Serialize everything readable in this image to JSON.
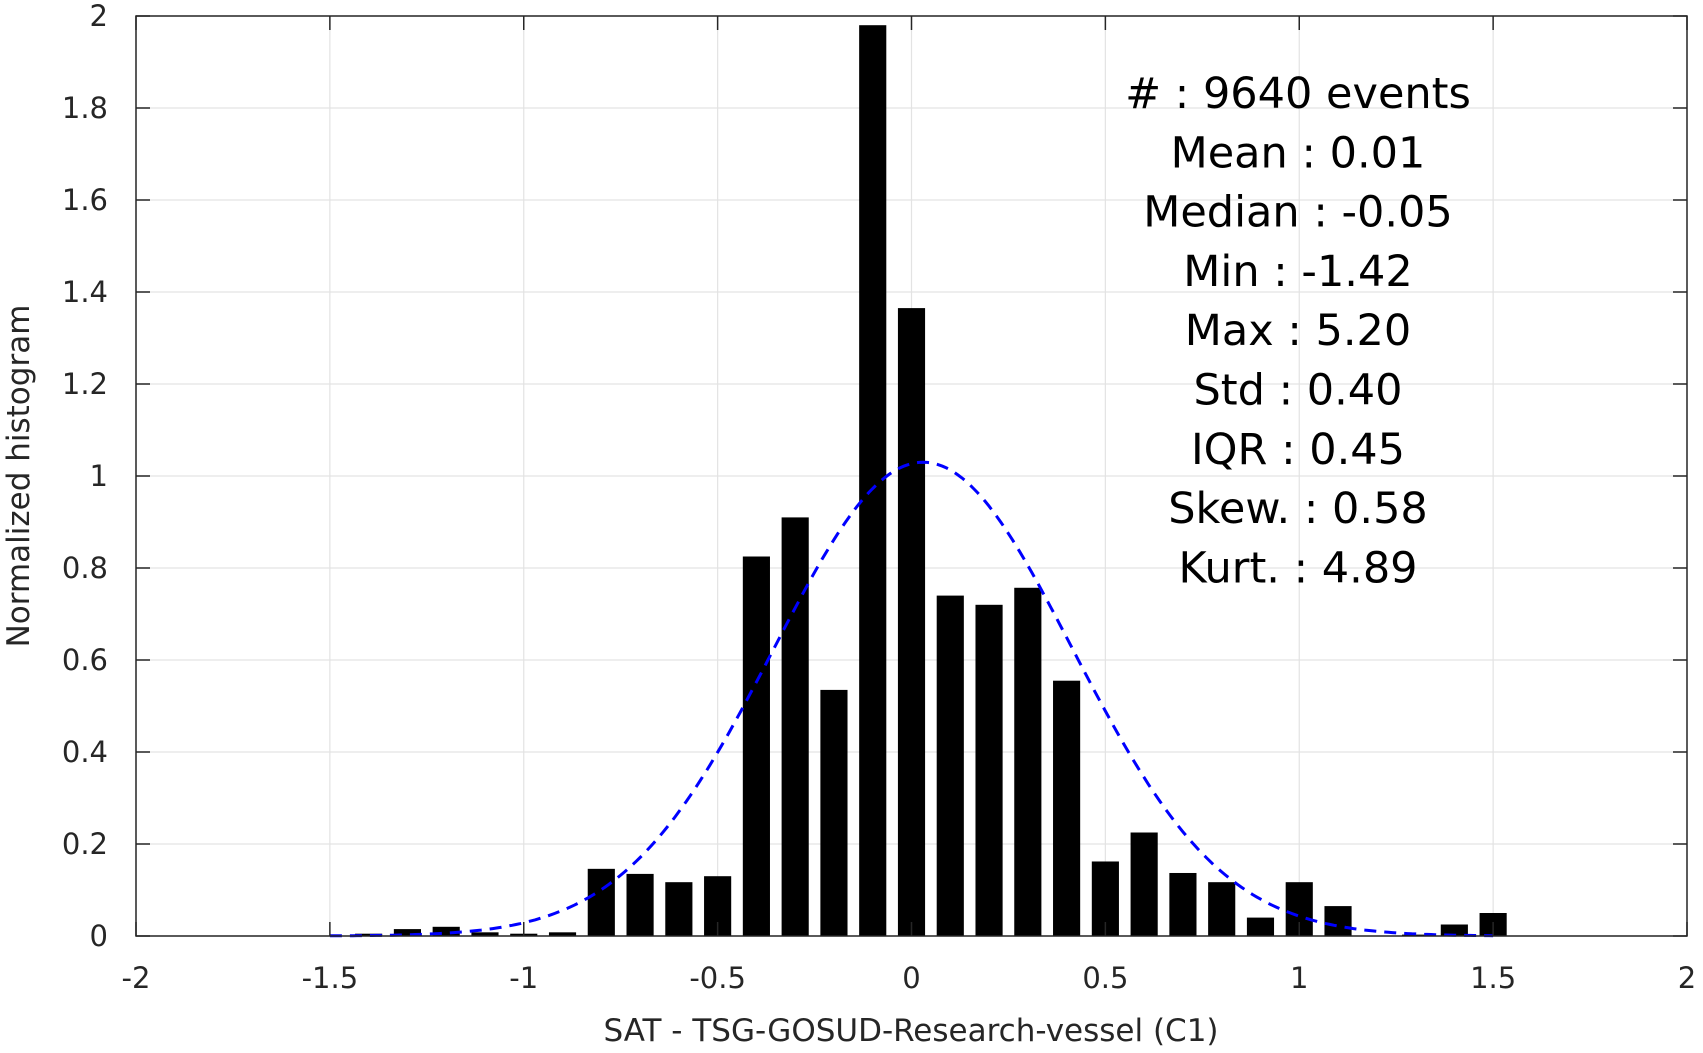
{
  "chart_data": {
    "type": "bar",
    "xlabel": "SAT - TSG-GOSUD-Research-vessel (C1)",
    "ylabel": "Normalized histogram",
    "xlim": [
      -2,
      2
    ],
    "ylim": [
      0,
      2
    ],
    "grid": true,
    "x_ticks": [
      "-2",
      "-1.5",
      "-1",
      "-0.5",
      "0",
      "0.5",
      "1",
      "1.5",
      "2"
    ],
    "y_ticks": [
      "0",
      "0.2",
      "0.4",
      "0.6",
      "0.8",
      "1",
      "1.2",
      "1.4",
      "1.6",
      "1.8",
      "2"
    ],
    "bar_color": "#000000",
    "bar_width": 0.07,
    "bars": [
      {
        "x": -1.4,
        "y": 0.005
      },
      {
        "x": -1.3,
        "y": 0.015
      },
      {
        "x": -1.2,
        "y": 0.02
      },
      {
        "x": -1.1,
        "y": 0.008
      },
      {
        "x": -1.0,
        "y": 0.005
      },
      {
        "x": -0.9,
        "y": 0.008
      },
      {
        "x": -0.8,
        "y": 0.146
      },
      {
        "x": -0.7,
        "y": 0.135
      },
      {
        "x": -0.6,
        "y": 0.117
      },
      {
        "x": -0.5,
        "y": 0.13
      },
      {
        "x": -0.4,
        "y": 0.825
      },
      {
        "x": -0.3,
        "y": 0.91
      },
      {
        "x": -0.2,
        "y": 0.535
      },
      {
        "x": -0.1,
        "y": 1.98
      },
      {
        "x": 0.0,
        "y": 1.365
      },
      {
        "x": 0.1,
        "y": 0.74
      },
      {
        "x": 0.2,
        "y": 0.72
      },
      {
        "x": 0.3,
        "y": 0.757
      },
      {
        "x": 0.4,
        "y": 0.555
      },
      {
        "x": 0.5,
        "y": 0.162
      },
      {
        "x": 0.6,
        "y": 0.225
      },
      {
        "x": 0.7,
        "y": 0.137
      },
      {
        "x": 0.8,
        "y": 0.117
      },
      {
        "x": 0.9,
        "y": 0.04
      },
      {
        "x": 1.0,
        "y": 0.117
      },
      {
        "x": 1.1,
        "y": 0.065
      },
      {
        "x": 1.2,
        "y": 0.0
      },
      {
        "x": 1.3,
        "y": 0.003
      },
      {
        "x": 1.4,
        "y": 0.025
      },
      {
        "x": 1.5,
        "y": 0.05
      }
    ],
    "fit_curve": {
      "style": "dashed",
      "color": "#0000ff",
      "mean": 0.03,
      "sigma": 0.385,
      "peak": 1.03,
      "x_range": [
        -1.5,
        1.5
      ]
    },
    "stats": [
      {
        "label": "#",
        "sep": ":",
        "value": "9640 events"
      },
      {
        "label": "Mean",
        "sep": ":",
        "value": "0.01"
      },
      {
        "label": "Median",
        "sep": ":",
        "value": "-0.05"
      },
      {
        "label": "Min",
        "sep": ":",
        "value": "-1.42"
      },
      {
        "label": "Max",
        "sep": ":",
        "value": "5.20"
      },
      {
        "label": "Std",
        "sep": ":",
        "value": "0.40"
      },
      {
        "label": "IQR",
        "sep": ":",
        "value": "0.45"
      },
      {
        "label": "Skew.",
        "sep": ":",
        "value": "0.58"
      },
      {
        "label": "Kurt.",
        "sep": ":",
        "value": "4.89"
      }
    ]
  }
}
